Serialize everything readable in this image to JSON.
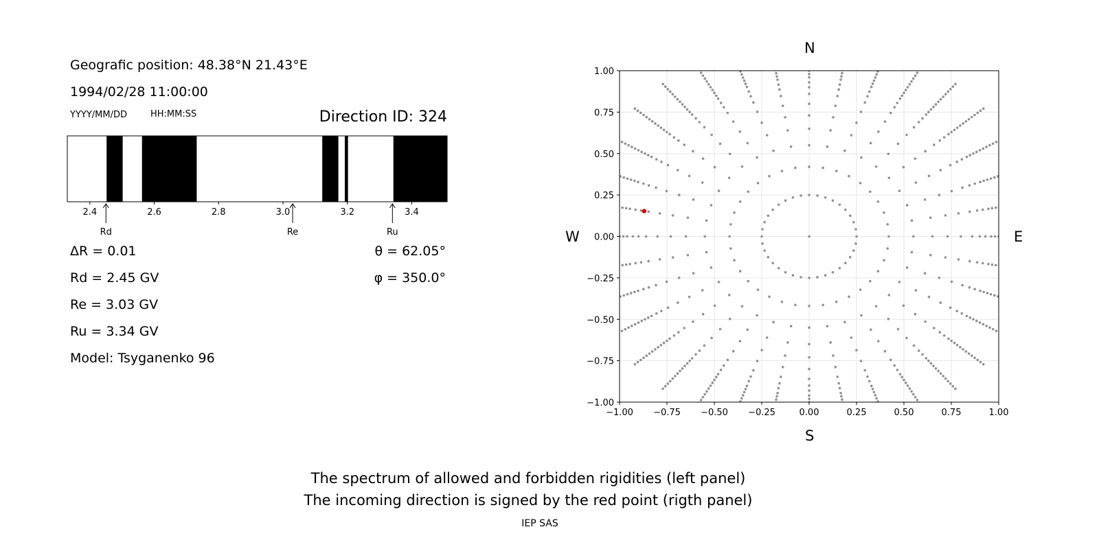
{
  "info": {
    "position": "Geografic position: 48.38°N 21.43°E",
    "datetime": "1994/02/28 11:00:00",
    "date_format": "YYYY/MM/DD",
    "time_format": "HH:MM:SS",
    "direction": "Direction ID: 324"
  },
  "params": {
    "delta_r": "ΔR = 0.01",
    "rd": "Rd = 2.45 GV",
    "re": "Re = 3.03 GV",
    "ru": "Ru = 3.34 GV",
    "model": "Model: Tsyganenko 96",
    "theta": "θ = 62.05°",
    "phi": "φ = 350.0°"
  },
  "compass": {
    "n": "N",
    "s": "S",
    "w": "W",
    "e": "E"
  },
  "caption": {
    "line1": "The spectrum of allowed and forbidden rigidities (left panel)",
    "line2": "The incoming direction is signed by the red point (rigth panel)",
    "credit": "IEP SAS"
  },
  "chart_data": [
    {
      "type": "spectrum",
      "xlim": [
        2.33,
        3.51
      ],
      "x_ticks": [
        2.4,
        2.6,
        2.8,
        3.0,
        3.2,
        3.4
      ],
      "x_tick_labels": [
        "2.4",
        "2.6",
        "2.8",
        "3.0",
        "3.2",
        "3.4"
      ],
      "forbidden_bands": [
        [
          2.452,
          2.502
        ],
        [
          2.562,
          2.732
        ],
        [
          3.122,
          3.172
        ],
        [
          3.192,
          3.202
        ],
        [
          3.343,
          3.51
        ]
      ],
      "markers": [
        {
          "label": "Rd",
          "value": 2.45
        },
        {
          "label": "Re",
          "value": 3.03
        },
        {
          "label": "Ru",
          "value": 3.34
        }
      ]
    },
    {
      "type": "scatter",
      "xlim": [
        -1.0,
        1.0
      ],
      "ylim": [
        -1.0,
        1.0
      ],
      "x_ticks": [
        -1.0,
        -0.75,
        -0.5,
        -0.25,
        0.0,
        0.25,
        0.5,
        0.75,
        1.0
      ],
      "x_tick_labels": [
        "−1.00",
        "−0.75",
        "−0.50",
        "−0.25",
        "0.00",
        "0.25",
        "0.50",
        "0.75",
        "1.00"
      ],
      "y_ticks": [
        -1.0,
        -0.75,
        -0.5,
        -0.25,
        0.0,
        0.25,
        0.5,
        0.75,
        1.0
      ],
      "y_tick_labels": [
        "−1.00",
        "−0.75",
        "−0.50",
        "−0.25",
        "0.00",
        "0.25",
        "0.50",
        "0.75",
        "1.00"
      ],
      "grid": true,
      "point_color": "#909090",
      "highlight_color": "#e00000",
      "grid_rings": [
        0.25,
        0.42,
        0.55,
        0.65,
        0.73,
        0.8,
        0.86,
        0.9,
        0.93,
        0.96,
        0.98,
        1.0,
        1.02,
        1.04,
        1.06,
        1.08,
        1.1,
        1.12,
        1.14,
        1.16,
        1.18,
        1.2
      ],
      "inner_ring_points": 36,
      "spoke_angles_deg_step": 10,
      "highlight": {
        "x": -0.87,
        "y": 0.153
      }
    }
  ]
}
